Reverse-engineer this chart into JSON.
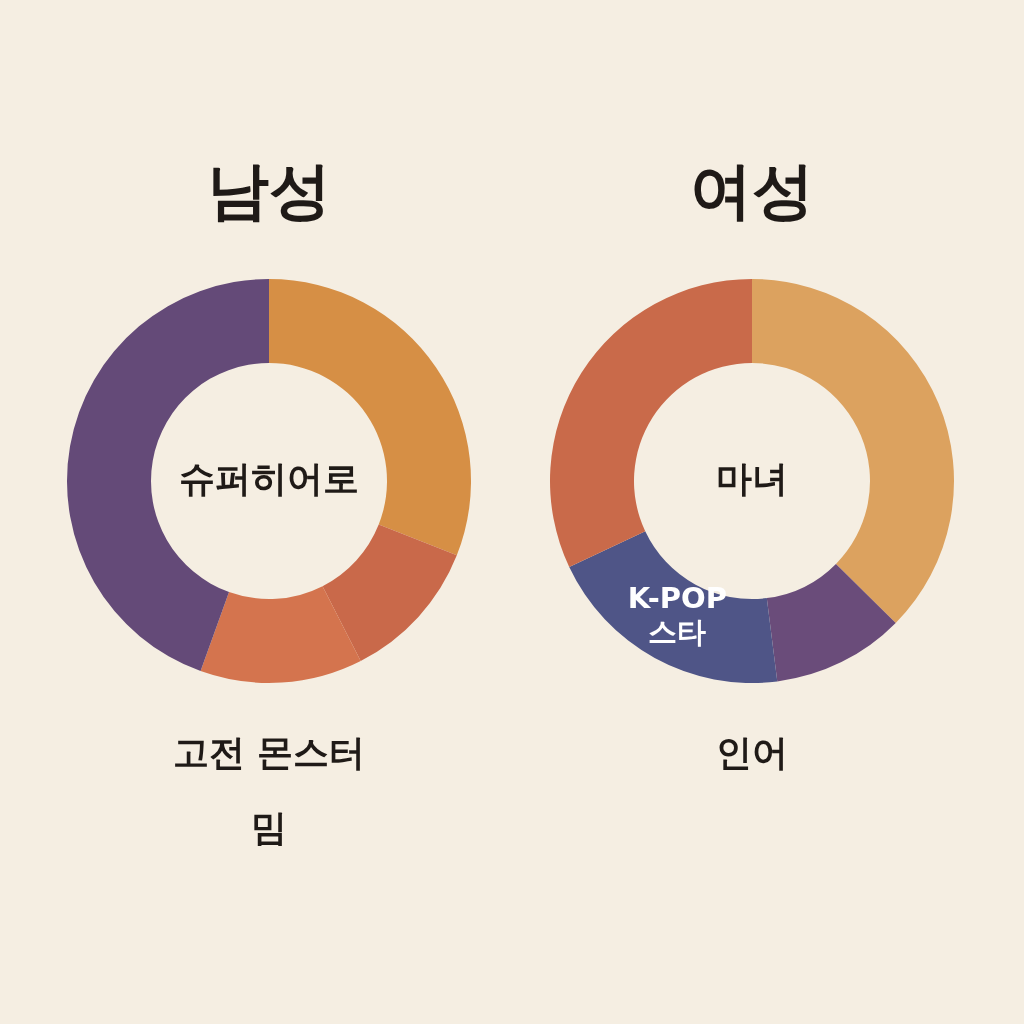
{
  "chart_data": [
    {
      "type": "donut",
      "title": "남성",
      "categories": [
        null,
        null,
        null,
        null
      ],
      "values": [
        31,
        11.5,
        13,
        44.5
      ],
      "colors": [
        "#d68f45",
        "#c9694a",
        "#d4744e",
        "#644a78"
      ],
      "annotations": [
        "슈퍼히어로",
        "고전 몬스터",
        "밈"
      ]
    },
    {
      "type": "donut",
      "title": "여성",
      "categories": [
        null,
        null,
        "K-POP 스타",
        null
      ],
      "values": [
        37.4,
        10.6,
        20,
        32
      ],
      "colors": [
        "#dca25f",
        "#6a4c7a",
        "#4f5587",
        "#c96a4a"
      ],
      "annotations": [
        "마녀",
        "인어"
      ]
    }
  ]
}
